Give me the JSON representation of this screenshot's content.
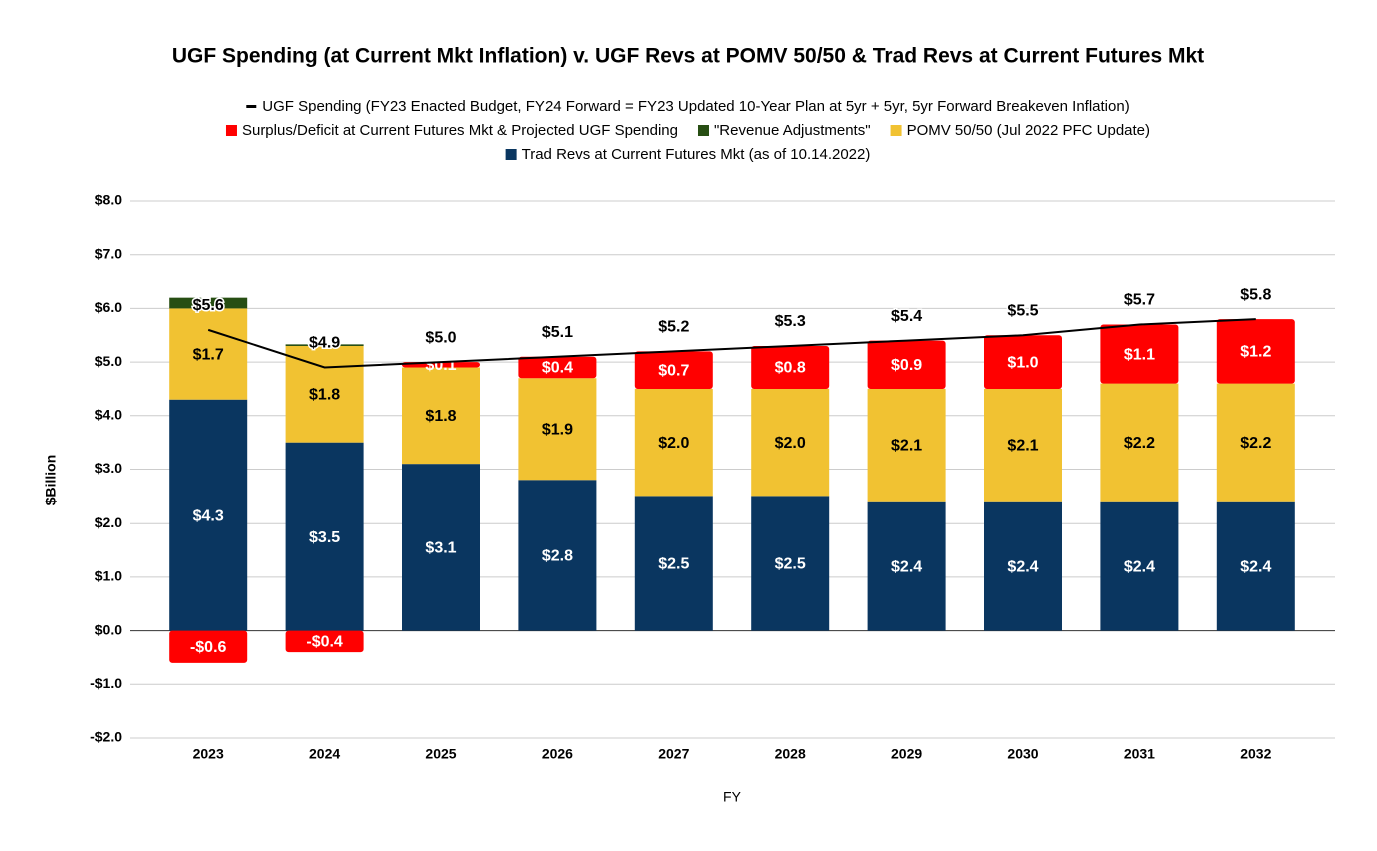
{
  "chart_data": {
    "type": "bar",
    "title": "UGF Spending (at Current Mkt Inflation) v. UGF Revs at POMV 50/50 & Trad Revs at Current Futures Mkt",
    "xlabel": "FY",
    "ylabel": "$Billion",
    "categories": [
      "2023",
      "2024",
      "2025",
      "2026",
      "2027",
      "2028",
      "2029",
      "2030",
      "2031",
      "2032"
    ],
    "series": [
      {
        "name": "Trad Revs at Current Futures Mkt (as of 10.14.2022)",
        "color": "#0a3660",
        "values": [
          4.3,
          3.5,
          3.1,
          2.8,
          2.5,
          2.5,
          2.4,
          2.4,
          2.4,
          2.4
        ],
        "value_labels": [
          "$4.3",
          "$3.5",
          "$3.1",
          "$2.8",
          "$2.5",
          "$2.5",
          "$2.4",
          "$2.4",
          "$2.4",
          "$2.4"
        ]
      },
      {
        "name": "POMV 50/50 (Jul 2022 PFC Update)",
        "color": "#f1c232",
        "values": [
          1.7,
          1.8,
          1.8,
          1.9,
          2.0,
          2.0,
          2.1,
          2.1,
          2.2,
          2.2
        ],
        "value_labels": [
          "$1.7",
          "$1.8",
          "$1.8",
          "$1.9",
          "$2.0",
          "$2.0",
          "$2.1",
          "$2.1",
          "$2.2",
          "$2.2"
        ]
      },
      {
        "name": "\"Revenue Adjustments\"",
        "color": "#274e13",
        "values": [
          0.2,
          0.03,
          0,
          0,
          0,
          0,
          0,
          0,
          0,
          0
        ]
      },
      {
        "name": "Surplus/Deficit at Current Futures Mkt & Projected UGF Spending",
        "color": "#ff0000",
        "values": [
          -0.6,
          -0.4,
          0.1,
          0.4,
          0.7,
          0.8,
          0.9,
          1.0,
          1.1,
          1.2
        ],
        "value_labels": [
          "-$0.6",
          "-$0.4",
          "$0.1",
          "$0.4",
          "$0.7",
          "$0.8",
          "$0.9",
          "$1.0",
          "$1.1",
          "$1.2"
        ]
      },
      {
        "name": "UGF Spending (FY23 Enacted Budget, FY24 Forward = FY23 Updated 10-Year Plan at 5yr + 5yr, 5yr Forward Breakeven Inflation)",
        "color": "#000000",
        "type": "line",
        "values": [
          5.6,
          4.9,
          5.0,
          5.1,
          5.2,
          5.3,
          5.4,
          5.5,
          5.7,
          5.8
        ],
        "value_labels": [
          "$5.6",
          "$4.9",
          "$5.0",
          "$5.1",
          "$5.2",
          "$5.3",
          "$5.4",
          "$5.5",
          "$5.7",
          "$5.8"
        ]
      }
    ],
    "stacked": true,
    "ylim": [
      -2,
      8
    ],
    "yticks": [
      {
        "value": -2,
        "label": "-$2.0"
      },
      {
        "value": -1,
        "label": "-$1.0"
      },
      {
        "value": 0,
        "label": "$0.0"
      },
      {
        "value": 1,
        "label": "$1.0"
      },
      {
        "value": 2,
        "label": "$2.0"
      },
      {
        "value": 3,
        "label": "$3.0"
      },
      {
        "value": 4,
        "label": "$4.0"
      },
      {
        "value": 5,
        "label": "$5.0"
      },
      {
        "value": 6,
        "label": "$6.0"
      },
      {
        "value": 7,
        "label": "$7.0"
      },
      {
        "value": 8,
        "label": "$8.0"
      }
    ],
    "grid": true,
    "legend": "top"
  }
}
